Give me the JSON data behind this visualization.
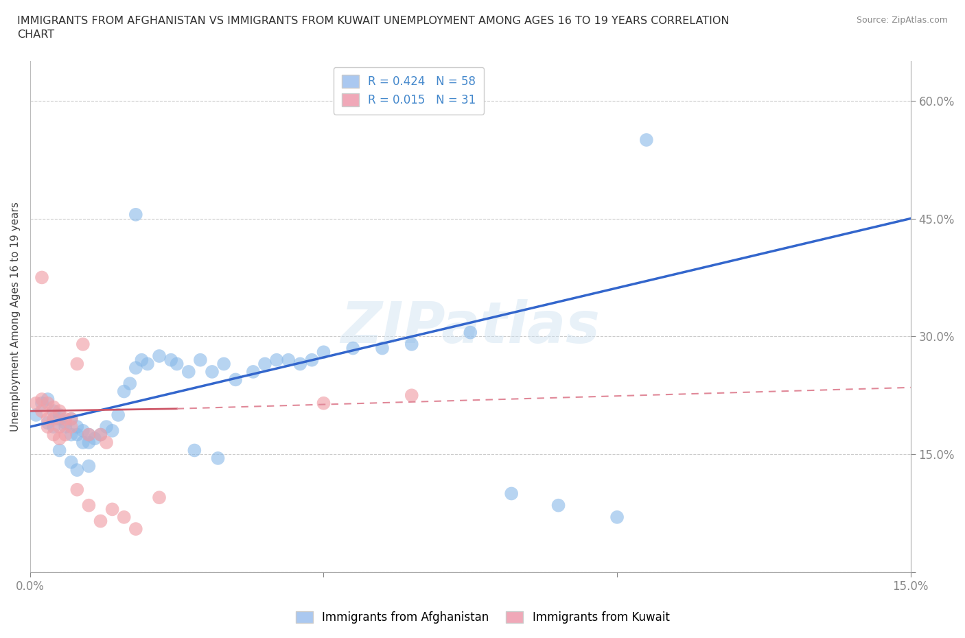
{
  "title": "IMMIGRANTS FROM AFGHANISTAN VS IMMIGRANTS FROM KUWAIT UNEMPLOYMENT AMONG AGES 16 TO 19 YEARS CORRELATION\nCHART",
  "source": "Source: ZipAtlas.com",
  "ylabel": "Unemployment Among Ages 16 to 19 years",
  "xlim": [
    0.0,
    0.15
  ],
  "ylim": [
    0.0,
    0.65
  ],
  "yticks": [
    0.0,
    0.15,
    0.3,
    0.45,
    0.6
  ],
  "xticks": [
    0.0,
    0.05,
    0.1,
    0.15
  ],
  "xtick_labels": [
    "0.0%",
    "",
    "",
    "15.0%"
  ],
  "ytick_labels_right": [
    "",
    "15.0%",
    "30.0%",
    "45.0%",
    "60.0%"
  ],
  "watermark": "ZIPatlas",
  "legend_label1": "R = 0.424   N = 58",
  "legend_label2": "R = 0.015   N = 31",
  "legend_color1": "#aac8f0",
  "legend_color2": "#f0a8b8",
  "afghanistan_color": "#88b8e8",
  "kuwait_color": "#f0a0a8",
  "afghanistan_scatter": [
    [
      0.001,
      0.2
    ],
    [
      0.002,
      0.215
    ],
    [
      0.003,
      0.22
    ],
    [
      0.003,
      0.19
    ],
    [
      0.004,
      0.205
    ],
    [
      0.004,
      0.185
    ],
    [
      0.005,
      0.2
    ],
    [
      0.005,
      0.195
    ],
    [
      0.006,
      0.19
    ],
    [
      0.006,
      0.185
    ],
    [
      0.007,
      0.195
    ],
    [
      0.007,
      0.175
    ],
    [
      0.008,
      0.185
    ],
    [
      0.008,
      0.175
    ],
    [
      0.009,
      0.18
    ],
    [
      0.009,
      0.165
    ],
    [
      0.01,
      0.175
    ],
    [
      0.01,
      0.165
    ],
    [
      0.011,
      0.17
    ],
    [
      0.012,
      0.175
    ],
    [
      0.013,
      0.185
    ],
    [
      0.014,
      0.18
    ],
    [
      0.015,
      0.2
    ],
    [
      0.016,
      0.23
    ],
    [
      0.017,
      0.24
    ],
    [
      0.018,
      0.26
    ],
    [
      0.019,
      0.27
    ],
    [
      0.02,
      0.265
    ],
    [
      0.022,
      0.275
    ],
    [
      0.024,
      0.27
    ],
    [
      0.025,
      0.265
    ],
    [
      0.027,
      0.255
    ],
    [
      0.029,
      0.27
    ],
    [
      0.031,
      0.255
    ],
    [
      0.033,
      0.265
    ],
    [
      0.035,
      0.245
    ],
    [
      0.038,
      0.255
    ],
    [
      0.04,
      0.265
    ],
    [
      0.042,
      0.27
    ],
    [
      0.044,
      0.27
    ],
    [
      0.046,
      0.265
    ],
    [
      0.048,
      0.27
    ],
    [
      0.05,
      0.28
    ],
    [
      0.055,
      0.285
    ],
    [
      0.06,
      0.285
    ],
    [
      0.065,
      0.29
    ],
    [
      0.018,
      0.455
    ],
    [
      0.075,
      0.305
    ],
    [
      0.005,
      0.155
    ],
    [
      0.007,
      0.14
    ],
    [
      0.008,
      0.13
    ],
    [
      0.01,
      0.135
    ],
    [
      0.028,
      0.155
    ],
    [
      0.032,
      0.145
    ],
    [
      0.082,
      0.1
    ],
    [
      0.09,
      0.085
    ],
    [
      0.105,
      0.55
    ],
    [
      0.1,
      0.07
    ]
  ],
  "kuwait_scatter": [
    [
      0.001,
      0.215
    ],
    [
      0.002,
      0.22
    ],
    [
      0.002,
      0.205
    ],
    [
      0.003,
      0.215
    ],
    [
      0.003,
      0.195
    ],
    [
      0.003,
      0.185
    ],
    [
      0.004,
      0.21
    ],
    [
      0.004,
      0.195
    ],
    [
      0.004,
      0.175
    ],
    [
      0.005,
      0.205
    ],
    [
      0.005,
      0.185
    ],
    [
      0.005,
      0.17
    ],
    [
      0.006,
      0.195
    ],
    [
      0.006,
      0.175
    ],
    [
      0.007,
      0.195
    ],
    [
      0.007,
      0.185
    ],
    [
      0.008,
      0.265
    ],
    [
      0.009,
      0.29
    ],
    [
      0.002,
      0.375
    ],
    [
      0.01,
      0.175
    ],
    [
      0.012,
      0.175
    ],
    [
      0.013,
      0.165
    ],
    [
      0.008,
      0.105
    ],
    [
      0.01,
      0.085
    ],
    [
      0.012,
      0.065
    ],
    [
      0.014,
      0.08
    ],
    [
      0.016,
      0.07
    ],
    [
      0.018,
      0.055
    ],
    [
      0.022,
      0.095
    ],
    [
      0.065,
      0.225
    ],
    [
      0.05,
      0.215
    ]
  ],
  "afghanistan_line": {
    "x0": 0.0,
    "y0": 0.185,
    "x1": 0.15,
    "y1": 0.45
  },
  "kuwait_line": {
    "x0": 0.0,
    "y0": 0.205,
    "x1": 0.15,
    "y1": 0.235
  },
  "background_color": "#ffffff",
  "grid_color": "#cccccc",
  "title_color": "#333333",
  "axis_label_color": "#444444",
  "tick_color": "#4488cc",
  "source_color": "#888888"
}
